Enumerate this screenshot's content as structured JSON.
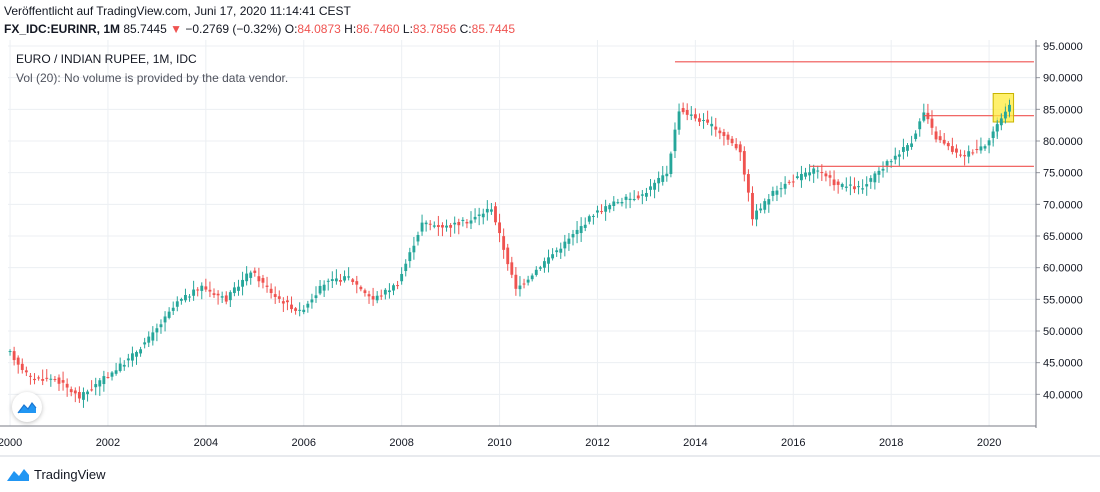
{
  "header": {
    "published": "Veröffentlicht auf TradingView.com, Juni 17, 2020 11:14:41 CEST",
    "symbol": "FX_IDC:EURINR, 1M",
    "last": "85.7445",
    "change_arrow": "▼",
    "change": "−0.2769 (−0.32%)",
    "o_label": "O:",
    "o_value": "84.0873",
    "h_label": "H:",
    "h_value": "86.7460",
    "l_label": "L:",
    "l_value": "83.7856",
    "c_label": "C:",
    "c_value": "85.7445"
  },
  "overlay": {
    "title": "EURO / INDIAN RUPEE, 1M, IDC",
    "volume_note": "Vol (20): No volume is provided by the data vendor."
  },
  "footer": {
    "brand": "TradingView",
    "logo_icon": "tradingview-logo-icon"
  },
  "colors": {
    "up": "#26a69a",
    "down": "#ef5350",
    "line": "#ef5350",
    "highlight": "#ffeb3b",
    "grid": "#eceff3"
  },
  "chart_data": {
    "type": "candlestick",
    "interval": "1M",
    "x_axis": {
      "type": "date",
      "range": [
        "2000-01",
        "2020-12"
      ],
      "tick_labels": [
        "2000",
        "2002",
        "2004",
        "2006",
        "2008",
        "2010",
        "2012",
        "2014",
        "2016",
        "2018",
        "2020"
      ]
    },
    "y_axis": {
      "position": "right",
      "range": [
        35,
        95
      ],
      "tick_labels": [
        "95.0000",
        "90.0000",
        "85.0000",
        "80.0000",
        "75.0000",
        "70.0000",
        "65.0000",
        "60.0000",
        "55.0000",
        "50.0000",
        "45.0000",
        "40.0000"
      ]
    },
    "grid": true,
    "anchors": [
      [
        "2000-01",
        46.5
      ],
      [
        "2000-06",
        42.5
      ],
      [
        "2000-12",
        42.5
      ],
      [
        "2001-06",
        39.5
      ],
      [
        "2001-12",
        42.5
      ],
      [
        "2002-06",
        45.5
      ],
      [
        "2002-12",
        49.5
      ],
      [
        "2003-06",
        54.5
      ],
      [
        "2003-12",
        57.0
      ],
      [
        "2004-06",
        55.0
      ],
      [
        "2004-12",
        59.5
      ],
      [
        "2005-06",
        55.5
      ],
      [
        "2005-12",
        53.0
      ],
      [
        "2006-06",
        57.5
      ],
      [
        "2006-12",
        58.5
      ],
      [
        "2007-06",
        55.0
      ],
      [
        "2007-12",
        57.5
      ],
      [
        "2008-06",
        67.0
      ],
      [
        "2008-12",
        66.5
      ],
      [
        "2009-06",
        67.5
      ],
      [
        "2009-11",
        69.5
      ],
      [
        "2010-05",
        56.5
      ],
      [
        "2010-12",
        61.0
      ],
      [
        "2011-06",
        64.5
      ],
      [
        "2011-12",
        68.5
      ],
      [
        "2012-06",
        70.5
      ],
      [
        "2012-12",
        71.5
      ],
      [
        "2013-06",
        75.0
      ],
      [
        "2013-09",
        85.0
      ],
      [
        "2014-06",
        82.0
      ],
      [
        "2014-12",
        78.5
      ],
      [
        "2015-03",
        68.0
      ],
      [
        "2015-09",
        72.5
      ],
      [
        "2016-06",
        75.5
      ],
      [
        "2016-12",
        73.0
      ],
      [
        "2017-06",
        72.5
      ],
      [
        "2017-12",
        76.5
      ],
      [
        "2018-06",
        80.0
      ],
      [
        "2018-09",
        84.5
      ],
      [
        "2018-12",
        80.5
      ],
      [
        "2019-06",
        77.5
      ],
      [
        "2019-12",
        79.5
      ],
      [
        "2020-03",
        82.5
      ],
      [
        "2020-06",
        85.7
      ]
    ],
    "horizontal_lines": [
      {
        "y": 92.5,
        "x_from": "2013-08",
        "x_to": "2020-12"
      },
      {
        "y": 84.0,
        "x_from": "2018-09",
        "x_to": "2020-12"
      },
      {
        "y": 76.0,
        "x_from": "2016-05",
        "x_to": "2020-12"
      }
    ],
    "highlight_box": {
      "x_from": "2020-02",
      "x_to": "2020-07",
      "y_from": 83.0,
      "y_to": 87.5
    }
  }
}
